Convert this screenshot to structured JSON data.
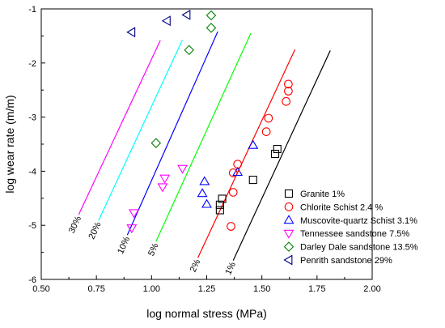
{
  "chart_data": {
    "type": "scatter",
    "title": "",
    "xlabel": "log normal stress (MPa)",
    "ylabel": "log wear rate (m/m)",
    "xlim": [
      0.5,
      2.0
    ],
    "ylim": [
      -6,
      -1
    ],
    "xticks": [
      "0.50",
      "0.75",
      "1.00",
      "1.25",
      "1.50",
      "1.75",
      "2.00"
    ],
    "yticks": [
      "-1",
      "-2",
      "-3",
      "-4",
      "-5",
      "-6"
    ],
    "grid": false,
    "legend_position": "bottom-right",
    "series": [
      {
        "name": "Granite 1%",
        "marker": "square",
        "color": "#000000",
        "points": [
          [
            1.31,
            -4.72
          ],
          [
            1.31,
            -4.62
          ],
          [
            1.32,
            -4.51
          ],
          [
            1.46,
            -4.16
          ],
          [
            1.56,
            -3.68
          ],
          [
            1.57,
            -3.59
          ]
        ]
      },
      {
        "name": "Chlorite Schist 2.4 %",
        "marker": "circle",
        "color": "#ff0000",
        "points": [
          [
            1.36,
            -5.02
          ],
          [
            1.37,
            -4.39
          ],
          [
            1.37,
            -4.03
          ],
          [
            1.39,
            -3.87
          ],
          [
            1.52,
            -3.27
          ],
          [
            1.53,
            -3.02
          ],
          [
            1.61,
            -2.71
          ],
          [
            1.62,
            -2.52
          ],
          [
            1.62,
            -2.39
          ]
        ]
      },
      {
        "name": "Muscovite-quartz Schist 3.1%",
        "marker": "triangle-up",
        "color": "#0000ff",
        "points": [
          [
            1.23,
            -4.41
          ],
          [
            1.24,
            -4.19
          ],
          [
            1.25,
            -4.61
          ],
          [
            1.39,
            -4.02
          ],
          [
            1.46,
            -3.52
          ]
        ]
      },
      {
        "name": "Tennessee sandstone 7.5%",
        "marker": "triangle-down",
        "color": "#ff00ff",
        "points": [
          [
            0.91,
            -5.05
          ],
          [
            0.92,
            -4.77
          ],
          [
            1.05,
            -4.29
          ],
          [
            1.06,
            -4.13
          ],
          [
            1.14,
            -3.95
          ]
        ]
      },
      {
        "name": "Darley Dale sandstone 13.5%",
        "marker": "diamond",
        "color": "#008000",
        "points": [
          [
            1.02,
            -3.48
          ],
          [
            1.17,
            -1.76
          ],
          [
            1.27,
            -1.35
          ],
          [
            1.27,
            -1.12
          ]
        ]
      },
      {
        "name": "Penrith sandstone 29%",
        "marker": "triangle-left",
        "color": "#000080",
        "points": [
          [
            0.91,
            -1.43
          ],
          [
            1.07,
            -1.22
          ],
          [
            1.16,
            -1.11
          ]
        ]
      }
    ],
    "reference_lines": [
      {
        "label": "30%",
        "color": "#ff00ff",
        "from": [
          0.67,
          -4.8
        ],
        "to": [
          1.04,
          -1.58
        ]
      },
      {
        "label": "20%",
        "color": "#00ffff",
        "from": [
          0.76,
          -4.91
        ],
        "to": [
          1.14,
          -1.57
        ]
      },
      {
        "label": "10%",
        "color": "#0000ff",
        "from": [
          0.89,
          -5.18
        ],
        "to": [
          1.3,
          -1.42
        ]
      },
      {
        "label": "5%",
        "color": "#00ff00",
        "from": [
          1.02,
          -5.3
        ],
        "to": [
          1.45,
          -1.45
        ]
      },
      {
        "label": "2%",
        "color": "#ff0000",
        "from": [
          1.21,
          -5.6
        ],
        "to": [
          1.65,
          -1.75
        ]
      },
      {
        "label": "1%",
        "color": "#000000",
        "from": [
          1.37,
          -5.65
        ],
        "to": [
          1.81,
          -1.77
        ]
      }
    ]
  }
}
